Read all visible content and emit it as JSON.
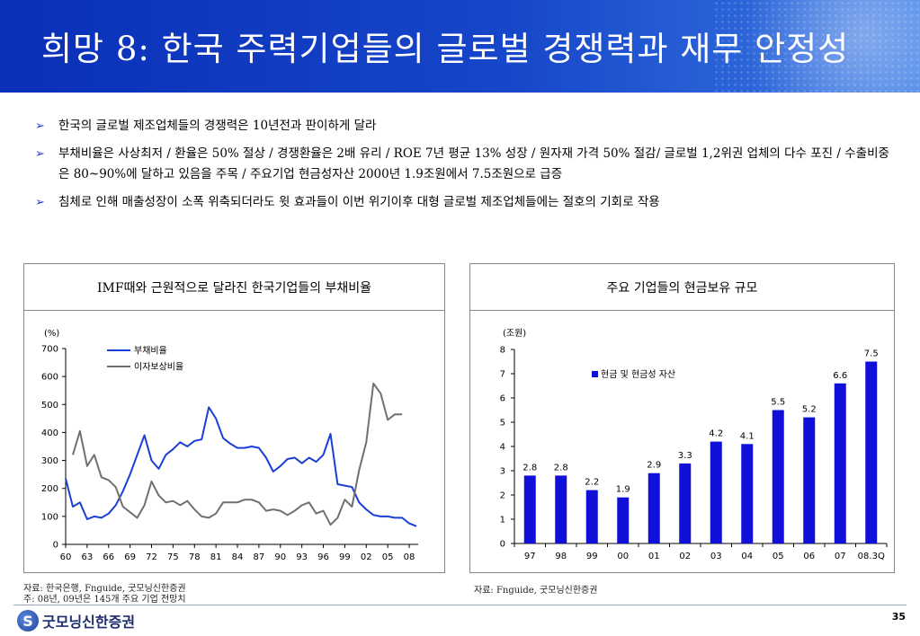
{
  "header": {
    "title": "희망 8: 한국 주력기업들의 글로벌 경쟁력과 재무 안정성"
  },
  "bullets": [
    "한국의 글로벌 제조업체들의 경쟁력은 10년전과 판이하게 달라",
    "부채비율은 사상최저 / 환율은 50% 절상 / 경쟁환율은 2배 유리 / ROE 7년 평균 13% 성장 / 원자재 가격 50% 절감/ 글로벌 1,2위권 업체의 다수 포진 / 수출비중은 80~90%에 달하고 있음을 주목 / 주요기업 현금성자산 2000년 1.9조원에서 7.5조원으로 급증",
    "침체로 인해 매출성장이 소폭 위축되더라도 윗 효과들이 이번 위기이후 대형 글로벌 제조업체들에는 절호의 기회로 작용"
  ],
  "chart_data": [
    {
      "type": "line",
      "title": "IMF때와 근원적으로 달라진 한국기업들의 부채비율",
      "ylabel": "(%)",
      "ylim": [
        0,
        700
      ],
      "yticks": [
        0,
        100,
        200,
        300,
        400,
        500,
        600,
        700
      ],
      "xlim": [
        1960,
        2009
      ],
      "xtick_labels": [
        "60",
        "63",
        "66",
        "69",
        "72",
        "75",
        "78",
        "81",
        "84",
        "87",
        "90",
        "93",
        "96",
        "99",
        "02",
        "05",
        "08"
      ],
      "legend": "top-left",
      "series": [
        {
          "name": "부채비율",
          "color": "#1a3fd6",
          "x": [
            1960,
            1961,
            1962,
            1963,
            1964,
            1965,
            1966,
            1967,
            1968,
            1969,
            1970,
            1971,
            1972,
            1973,
            1974,
            1975,
            1976,
            1977,
            1978,
            1979,
            1980,
            1981,
            1982,
            1983,
            1984,
            1985,
            1986,
            1987,
            1988,
            1989,
            1990,
            1991,
            1992,
            1993,
            1994,
            1995,
            1996,
            1997,
            1998,
            1999,
            2000,
            2001,
            2002,
            2003,
            2004,
            2005,
            2006,
            2007,
            2008,
            2009
          ],
          "y": [
            235,
            135,
            150,
            90,
            100,
            95,
            110,
            140,
            190,
            250,
            320,
            390,
            300,
            270,
            320,
            340,
            365,
            350,
            370,
            375,
            490,
            450,
            380,
            360,
            345,
            345,
            350,
            345,
            310,
            260,
            280,
            305,
            310,
            290,
            310,
            295,
            320,
            395,
            215,
            210,
            205,
            150,
            125,
            105,
            100,
            100,
            95,
            95,
            75,
            65
          ]
        },
        {
          "name": "이자보상비율",
          "color": "#707070",
          "x": [
            1961,
            1962,
            1963,
            1964,
            1965,
            1966,
            1967,
            1968,
            1969,
            1970,
            1971,
            1972,
            1973,
            1974,
            1975,
            1976,
            1977,
            1978,
            1979,
            1980,
            1981,
            1982,
            1983,
            1984,
            1985,
            1986,
            1987,
            1988,
            1989,
            1990,
            1991,
            1992,
            1993,
            1994,
            1995,
            1996,
            1997,
            1998,
            1999,
            2000,
            2001,
            2002,
            2003,
            2004,
            2005,
            2006,
            2007
          ],
          "y": [
            320,
            405,
            280,
            320,
            240,
            230,
            205,
            135,
            115,
            95,
            140,
            225,
            175,
            150,
            155,
            140,
            155,
            125,
            100,
            95,
            110,
            150,
            150,
            150,
            160,
            160,
            150,
            120,
            125,
            120,
            105,
            120,
            140,
            150,
            110,
            120,
            70,
            95,
            160,
            135,
            265,
            365,
            575,
            540,
            445,
            465,
            465
          ]
        }
      ]
    },
    {
      "type": "bar",
      "title": "주요 기업들의 현금보유 규모",
      "ylabel": "(조원)",
      "ylim": [
        0,
        8
      ],
      "yticks": [
        0,
        1,
        2,
        3,
        4,
        5,
        6,
        7,
        8
      ],
      "legend": "top-center",
      "categories": [
        "97",
        "98",
        "99",
        "00",
        "01",
        "02",
        "03",
        "04",
        "05",
        "06",
        "07",
        "08.3Q"
      ],
      "series": [
        {
          "name": "현금 및 현금성 자산",
          "color": "#1010d8",
          "values": [
            2.8,
            2.8,
            2.2,
            1.9,
            2.9,
            3.3,
            4.2,
            4.1,
            5.5,
            5.2,
            6.6,
            7.5
          ]
        }
      ]
    }
  ],
  "sources": {
    "left_line1": "자료: 한국은행, Fnguide, 굿모닝신한증권",
    "left_line2": "주: 08년, 09년은 145개 주요 기업 전망치",
    "right_line1": "자료: Fnguide, 굿모닝신한증권"
  },
  "footer": {
    "logo_text": "굿모닝신한증권",
    "page_number": "35"
  }
}
